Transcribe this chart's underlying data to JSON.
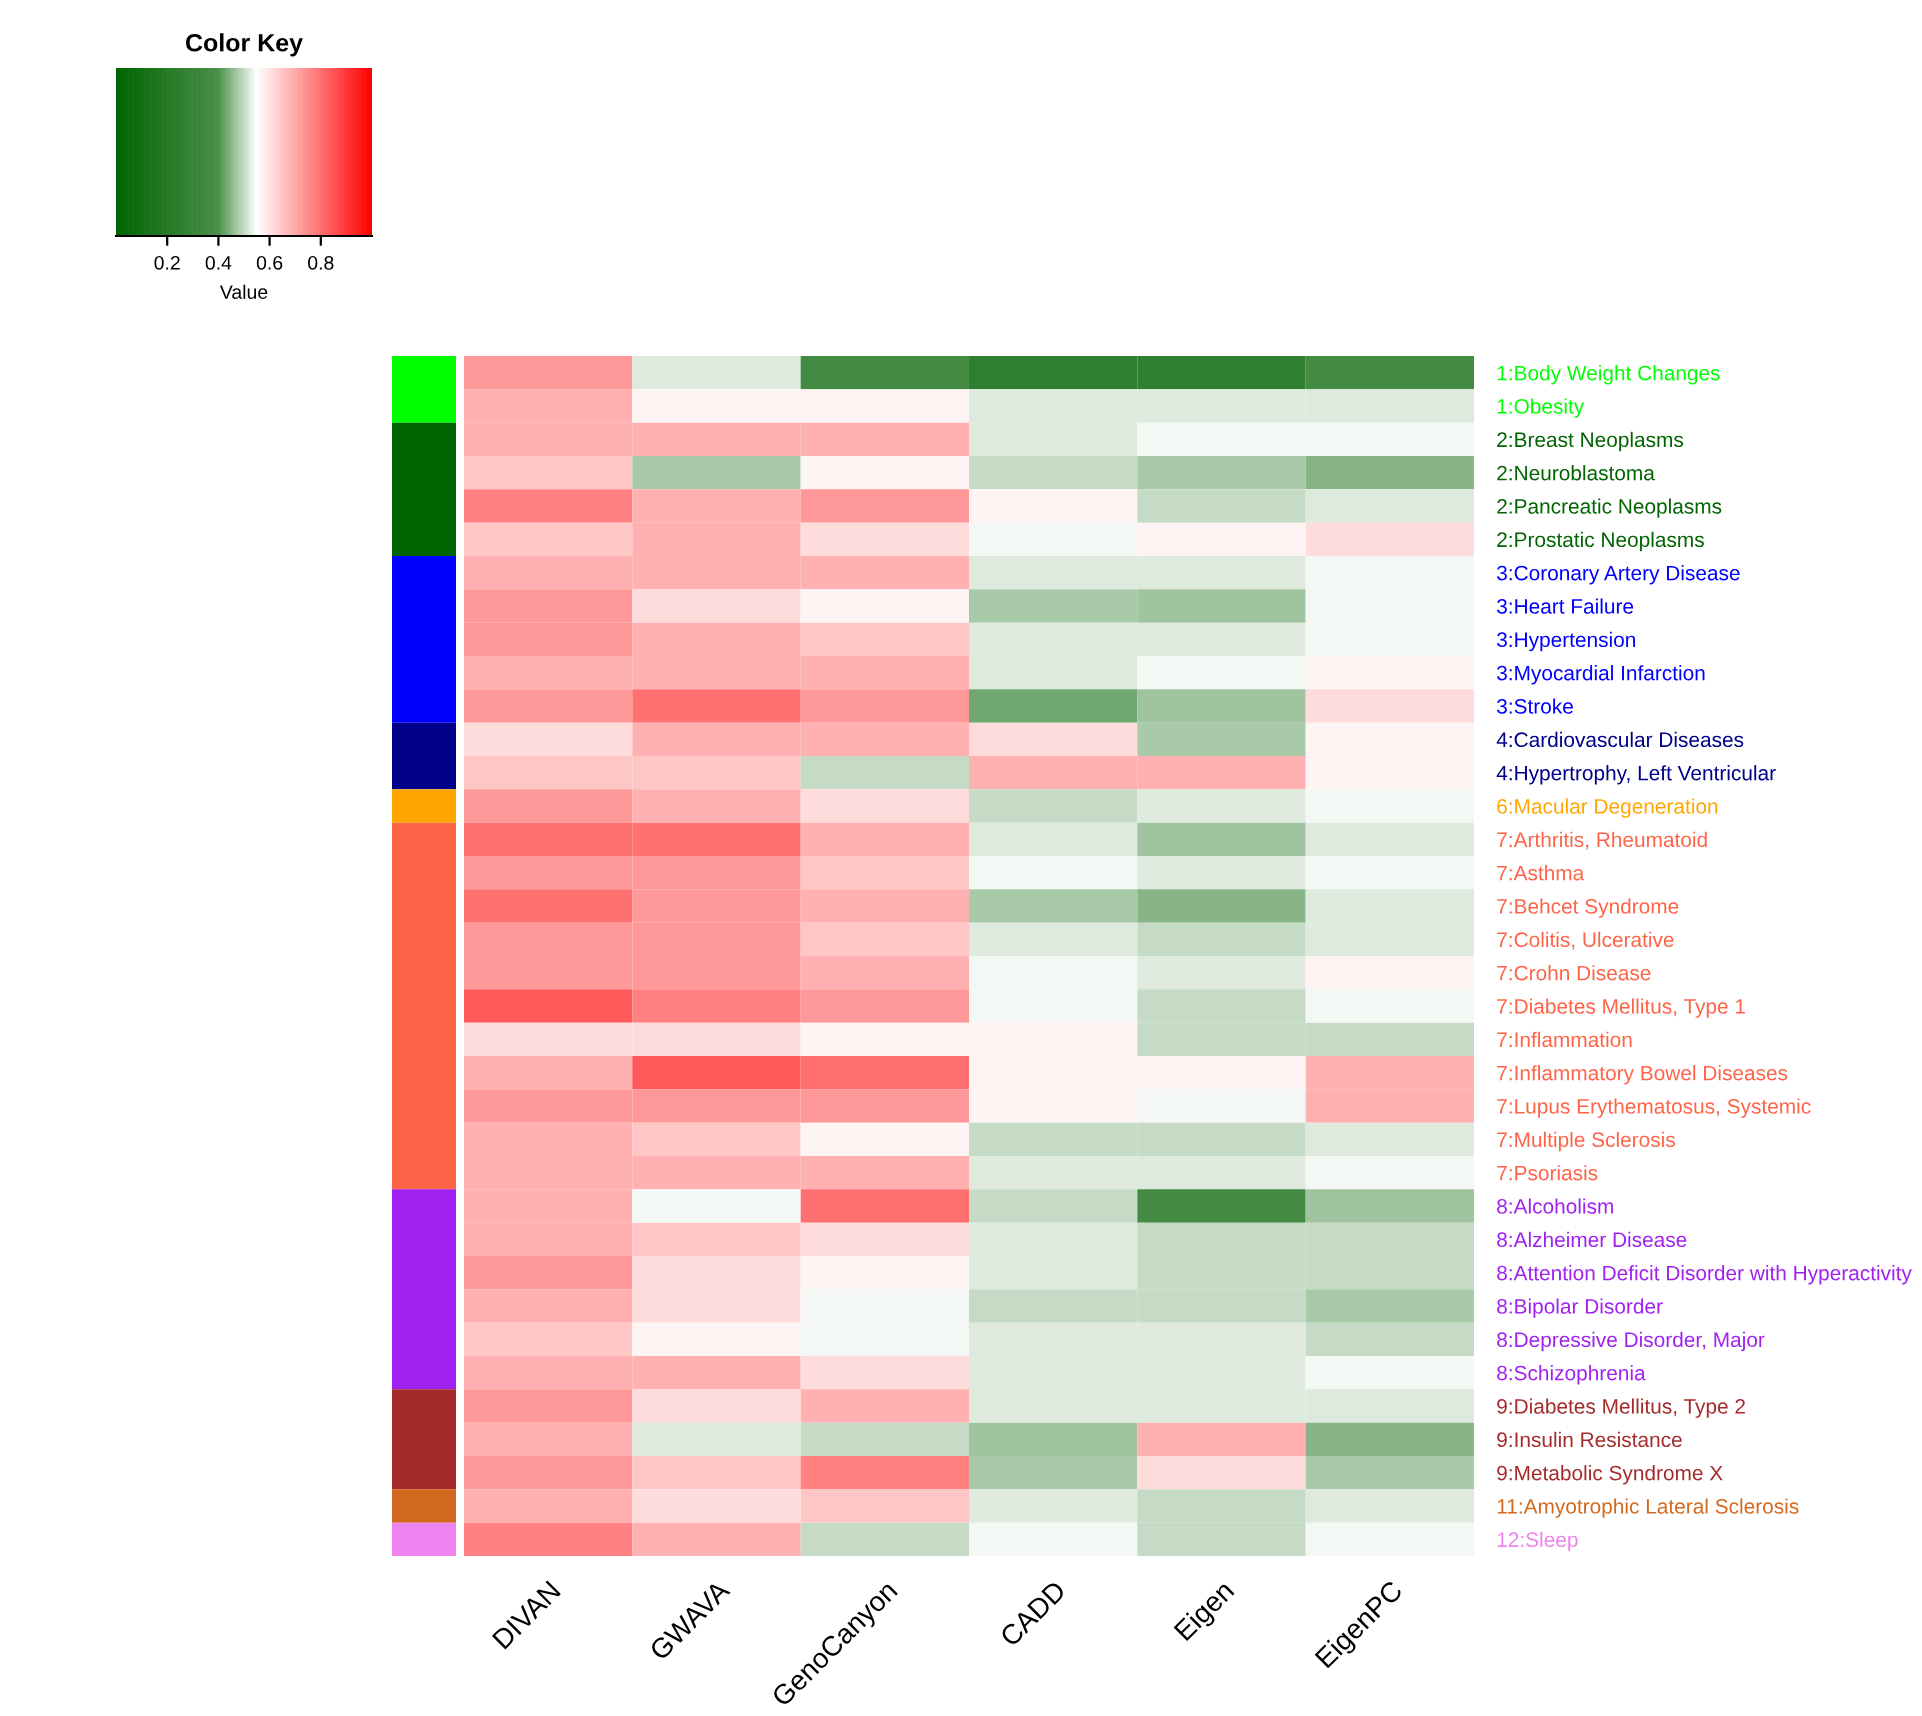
{
  "chart_data": {
    "type": "heatmap",
    "legend_title": "Color Key",
    "clabel": "Value",
    "clim": [
      0,
      1
    ],
    "cticks": [
      0.2,
      0.4,
      0.6,
      0.8
    ],
    "categories": [
      "DIVAN",
      "GWAVA",
      "GenoCanyon",
      "CADD",
      "Eigen",
      "EigenPC"
    ],
    "y_categories": [
      "1:Body Weight Changes",
      "1:Obesity",
      "2:Breast Neoplasms",
      "2:Neuroblastoma",
      "2:Pancreatic Neoplasms",
      "2:Prostatic Neoplasms",
      "3:Coronary Artery Disease",
      "3:Heart Failure",
      "3:Hypertension",
      "3:Myocardial Infarction",
      "3:Stroke",
      "4:Cardiovascular Diseases",
      "4:Hypertrophy, Left Ventricular",
      "6:Macular Degeneration",
      "7:Arthritis, Rheumatoid",
      "7:Asthma",
      "7:Behcet Syndrome",
      "7:Colitis, Ulcerative",
      "7:Crohn Disease",
      "7:Diabetes Mellitus, Type 1",
      "7:Inflammation",
      "7:Inflammatory Bowel Diseases",
      "7:Lupus Erythematosus, Systemic",
      "7:Multiple Sclerosis",
      "7:Psoriasis",
      "8:Alcoholism",
      "8:Alzheimer Disease",
      "8:Attention Deficit Disorder with Hyperactivity",
      "8:Bipolar Disorder",
      "8:Depressive Disorder, Major",
      "8:Schizophrenia",
      "9:Diabetes Mellitus, Type 2",
      "9:Insulin Resistance",
      "9:Metabolic Syndrome X",
      "11:Amyotrophic Lateral Sclerosis",
      "12:Sleep"
    ],
    "colors": [
      "#00ff00",
      "#00ff00",
      "#006400",
      "#006400",
      "#006400",
      "#006400",
      "#0000ff",
      "#0000ff",
      "#0000ff",
      "#0000ff",
      "#0000ff",
      "#00008b",
      "#00008b",
      "#ffa500",
      "#ff6347",
      "#ff6347",
      "#ff6347",
      "#ff6347",
      "#ff6347",
      "#ff6347",
      "#ff6347",
      "#ff6347",
      "#ff6347",
      "#ff6347",
      "#ff6347",
      "#a020f0",
      "#a020f0",
      "#a020f0",
      "#a020f0",
      "#a020f0",
      "#a020f0",
      "#a52a2a",
      "#a52a2a",
      "#a52a2a",
      "#d2691e",
      "#ee82ee"
    ],
    "cells": [
      [
        0.73,
        0.52,
        0.36,
        0.25,
        0.25,
        0.36
      ],
      [
        0.69,
        0.57,
        0.57,
        0.52,
        0.52,
        0.52
      ],
      [
        0.69,
        0.69,
        0.69,
        0.52,
        0.54,
        0.54
      ],
      [
        0.65,
        0.48,
        0.57,
        0.5,
        0.48,
        0.45
      ],
      [
        0.77,
        0.69,
        0.73,
        0.57,
        0.5,
        0.52
      ],
      [
        0.65,
        0.69,
        0.61,
        0.54,
        0.57,
        0.61
      ],
      [
        0.69,
        0.69,
        0.69,
        0.52,
        0.52,
        0.54
      ],
      [
        0.73,
        0.61,
        0.57,
        0.48,
        0.47,
        0.54
      ],
      [
        0.73,
        0.69,
        0.65,
        0.52,
        0.52,
        0.54
      ],
      [
        0.69,
        0.69,
        0.69,
        0.52,
        0.54,
        0.57
      ],
      [
        0.73,
        0.8,
        0.73,
        0.43,
        0.47,
        0.61
      ],
      [
        0.61,
        0.69,
        0.69,
        0.61,
        0.48,
        0.57
      ],
      [
        0.65,
        0.65,
        0.5,
        0.69,
        0.69,
        0.57
      ],
      [
        0.73,
        0.69,
        0.61,
        0.5,
        0.52,
        0.54
      ],
      [
        0.8,
        0.8,
        0.69,
        0.52,
        0.47,
        0.52
      ],
      [
        0.73,
        0.73,
        0.65,
        0.54,
        0.52,
        0.54
      ],
      [
        0.8,
        0.73,
        0.69,
        0.48,
        0.45,
        0.52
      ],
      [
        0.73,
        0.73,
        0.65,
        0.52,
        0.5,
        0.52
      ],
      [
        0.73,
        0.73,
        0.69,
        0.54,
        0.52,
        0.57
      ],
      [
        0.84,
        0.77,
        0.73,
        0.54,
        0.5,
        0.54
      ],
      [
        0.61,
        0.61,
        0.57,
        0.57,
        0.5,
        0.5
      ],
      [
        0.69,
        0.84,
        0.8,
        0.57,
        0.57,
        0.69
      ],
      [
        0.73,
        0.73,
        0.73,
        0.57,
        0.54,
        0.69
      ],
      [
        0.69,
        0.65,
        0.57,
        0.5,
        0.5,
        0.52
      ],
      [
        0.69,
        0.69,
        0.69,
        0.52,
        0.52,
        0.54
      ],
      [
        0.69,
        0.54,
        0.8,
        0.5,
        0.36,
        0.47
      ],
      [
        0.69,
        0.65,
        0.61,
        0.52,
        0.5,
        0.5
      ],
      [
        0.73,
        0.61,
        0.57,
        0.52,
        0.5,
        0.5
      ],
      [
        0.69,
        0.61,
        0.54,
        0.5,
        0.5,
        0.48
      ],
      [
        0.65,
        0.57,
        0.54,
        0.52,
        0.52,
        0.5
      ],
      [
        0.69,
        0.69,
        0.61,
        0.52,
        0.52,
        0.54
      ],
      [
        0.73,
        0.61,
        0.69,
        0.52,
        0.52,
        0.52
      ],
      [
        0.69,
        0.52,
        0.5,
        0.47,
        0.69,
        0.45
      ],
      [
        0.73,
        0.65,
        0.77,
        0.48,
        0.61,
        0.48
      ],
      [
        0.69,
        0.61,
        0.65,
        0.52,
        0.5,
        0.52
      ],
      [
        0.77,
        0.69,
        0.5,
        0.54,
        0.5,
        0.54
      ]
    ]
  }
}
